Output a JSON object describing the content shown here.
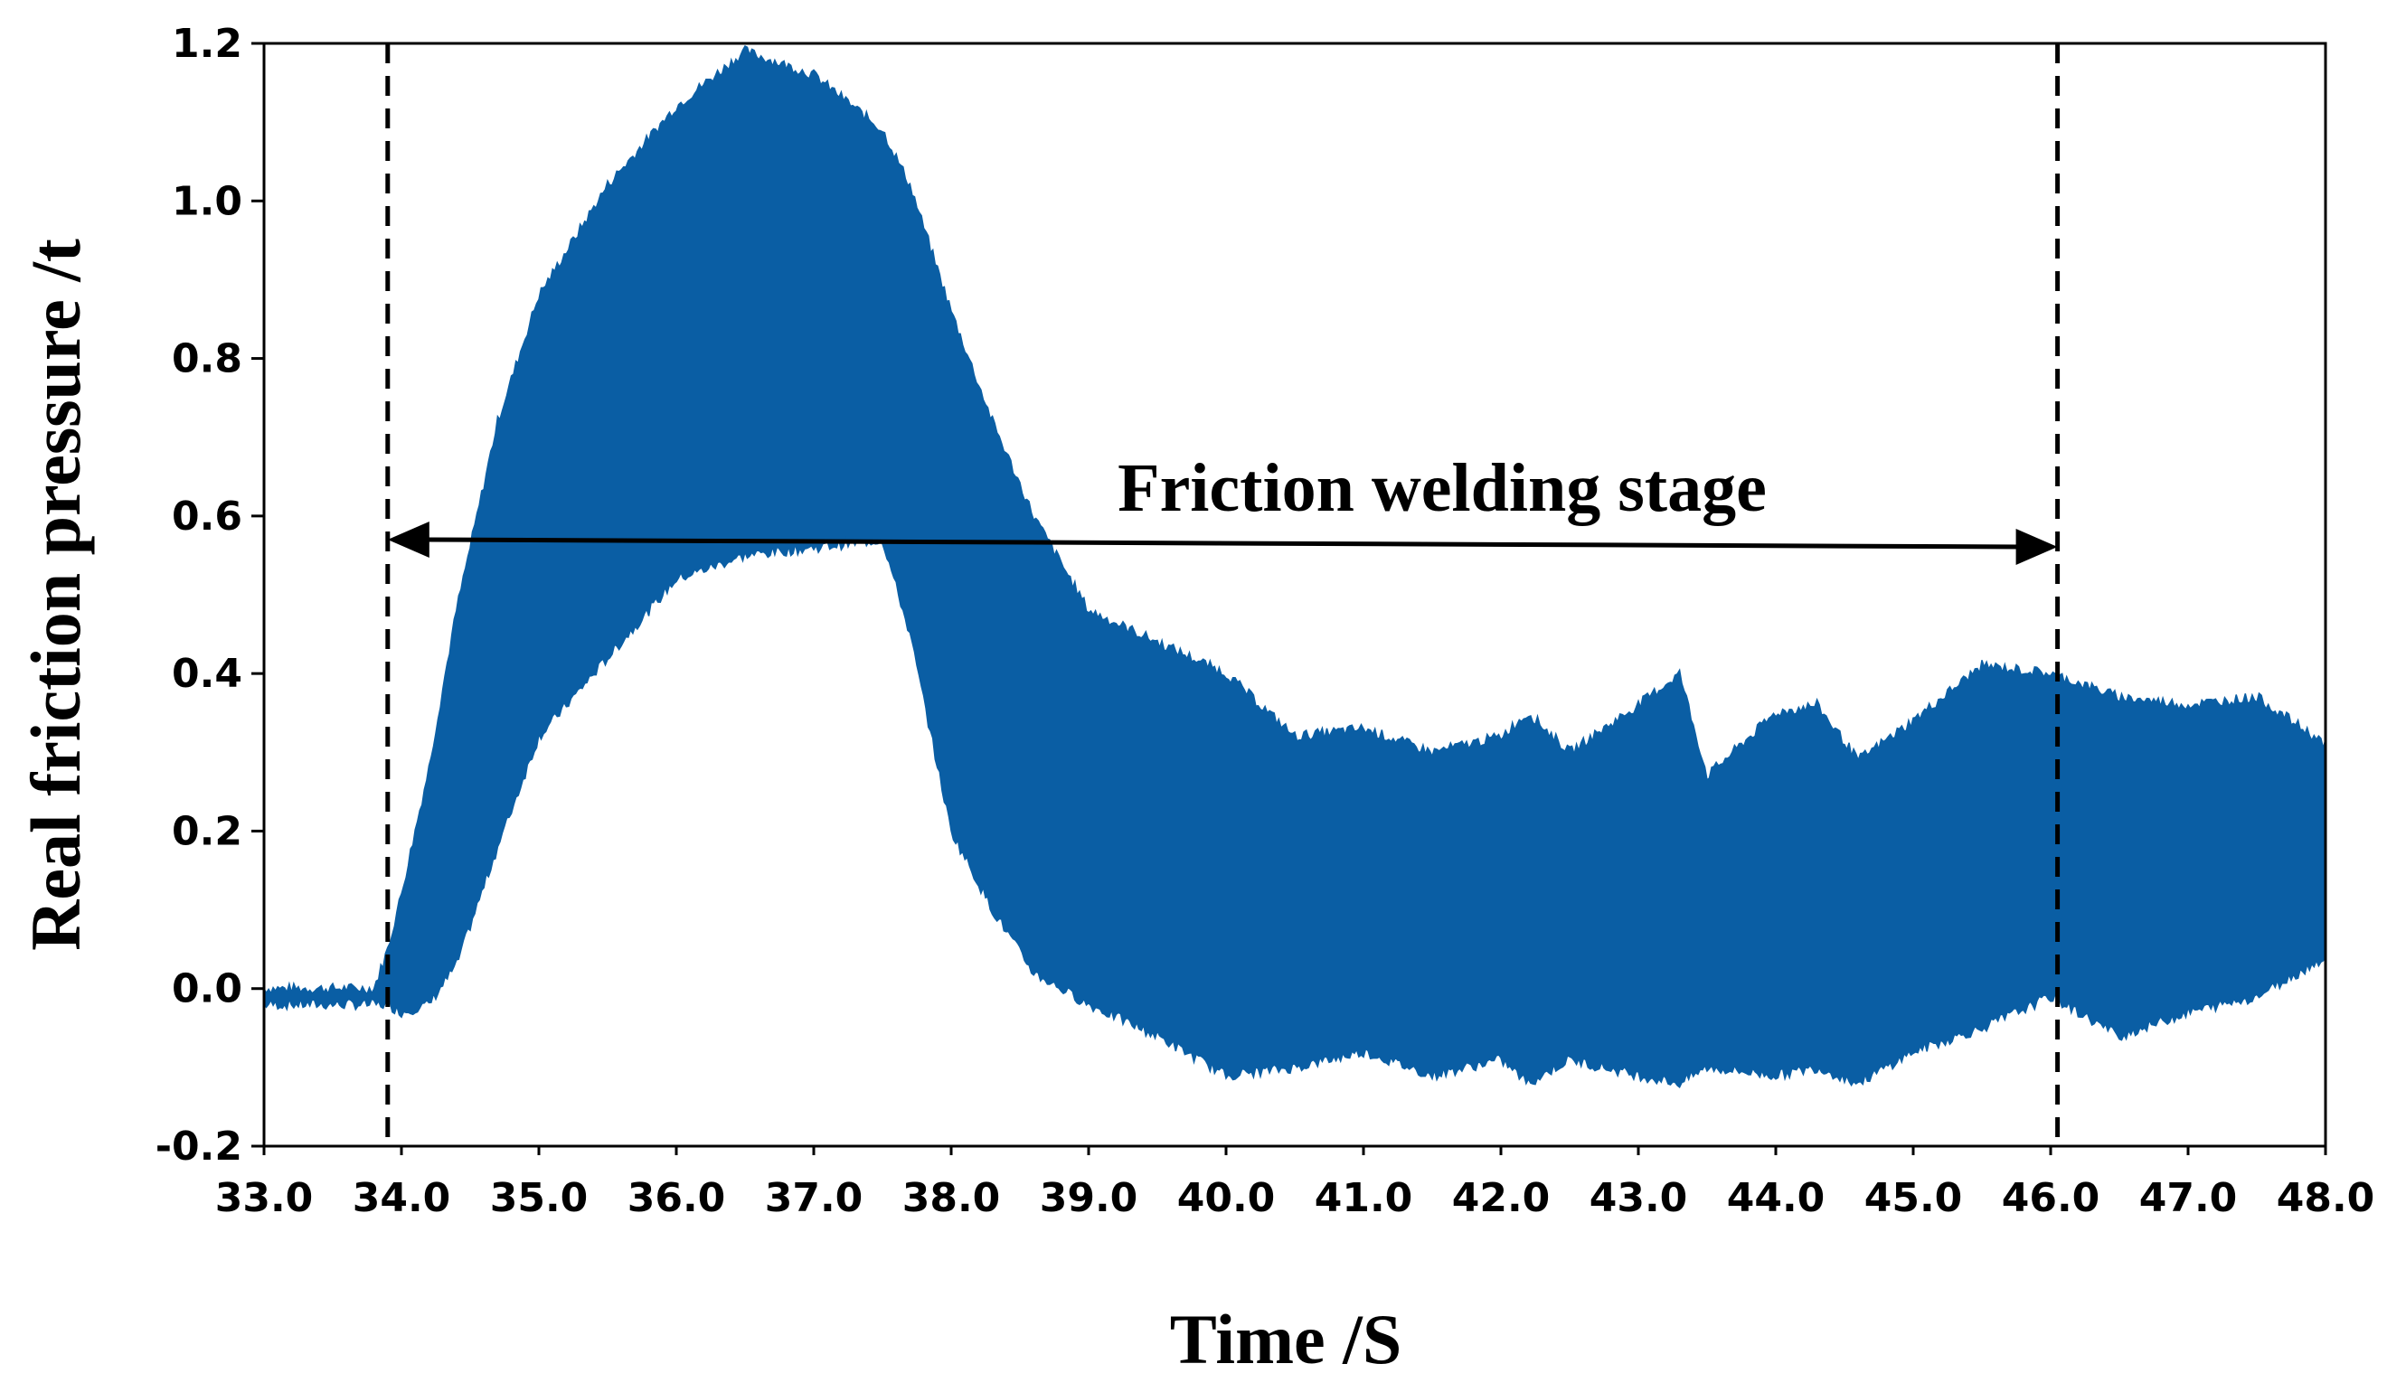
{
  "chart_data": {
    "type": "area",
    "title": "",
    "xlabel": "Time /S",
    "ylabel": "Real friction pressure /t",
    "xlim": [
      33.0,
      48.0
    ],
    "ylim": [
      -0.2,
      1.2
    ],
    "x_ticks": [
      "33.0",
      "34.0",
      "35.0",
      "36.0",
      "37.0",
      "38.0",
      "39.0",
      "40.0",
      "41.0",
      "42.0",
      "43.0",
      "44.0",
      "45.0",
      "46.0",
      "47.0",
      "48.0"
    ],
    "y_ticks": [
      "-0.2",
      "0.0",
      "0.2",
      "0.4",
      "0.6",
      "0.8",
      "1.0",
      "1.2"
    ],
    "grid": false,
    "legend": "none",
    "fill_color": "#0a5ea4",
    "series": [
      {
        "x": [
          33.0,
          33.4,
          33.8,
          33.9,
          34.0,
          34.2,
          34.4,
          34.7,
          35.0,
          35.5,
          36.0,
          36.5,
          37.0,
          37.5,
          37.7,
          38.0,
          38.3,
          38.6,
          39.0,
          39.5,
          40.0,
          40.5,
          41.0,
          41.5,
          42.0,
          42.2,
          42.5,
          43.0,
          43.3,
          43.5,
          44.0,
          44.3,
          44.6,
          45.0,
          45.5,
          46.0,
          46.5,
          47.0,
          47.5,
          48.0
        ],
        "upper": [
          0.0,
          0.0,
          0.0,
          0.05,
          0.12,
          0.28,
          0.48,
          0.72,
          0.88,
          1.02,
          1.12,
          1.19,
          1.16,
          1.09,
          1.02,
          0.86,
          0.72,
          0.6,
          0.48,
          0.44,
          0.4,
          0.32,
          0.33,
          0.3,
          0.32,
          0.35,
          0.3,
          0.36,
          0.4,
          0.27,
          0.35,
          0.36,
          0.29,
          0.34,
          0.41,
          0.4,
          0.37,
          0.36,
          0.37,
          0.31
        ],
        "lower": [
          -0.02,
          -0.02,
          -0.02,
          -0.02,
          -0.03,
          -0.02,
          0.03,
          0.18,
          0.32,
          0.42,
          0.52,
          0.55,
          0.56,
          0.57,
          0.45,
          0.2,
          0.1,
          0.02,
          -0.02,
          -0.06,
          -0.11,
          -0.1,
          -0.08,
          -0.11,
          -0.09,
          -0.12,
          -0.09,
          -0.11,
          -0.12,
          -0.1,
          -0.11,
          -0.1,
          -0.12,
          -0.08,
          -0.05,
          -0.01,
          -0.06,
          -0.03,
          -0.01,
          0.04
        ]
      }
    ],
    "annotations": {
      "stage_label": "Friction welding stage",
      "stage_start": 33.9,
      "stage_end": 46.05,
      "arrow_y": 0.57
    }
  }
}
